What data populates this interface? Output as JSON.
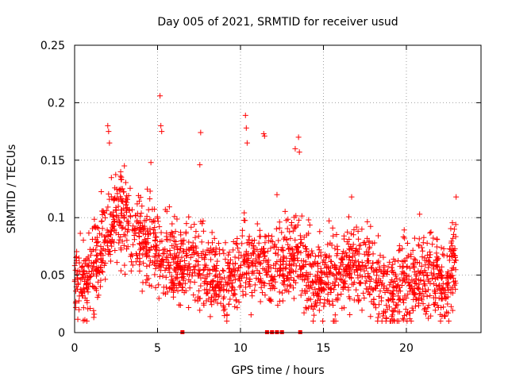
{
  "chart_data": {
    "type": "scatter",
    "title": "Day 005 of 2021, SRMTID for receiver usud",
    "xlabel": "GPS time / hours",
    "ylabel": "SRMTID / TECUs",
    "xlim": [
      0,
      24.5
    ],
    "ylim": [
      0,
      0.25
    ],
    "xticks": [
      0,
      5,
      10,
      15,
      20
    ],
    "yticks": [
      0,
      0.05,
      0.1,
      0.15,
      0.2,
      0.25
    ],
    "grid": true,
    "marker": "plus",
    "color": "#ff0000",
    "trend": {
      "x": [
        0,
        0.5,
        1,
        1.5,
        2,
        2.5,
        3,
        3.5,
        4,
        4.5,
        5,
        5.5,
        6,
        6.5,
        7,
        7.5,
        8,
        8.5,
        9,
        9.5,
        10,
        10.5,
        11,
        11.5,
        12,
        12.5,
        13,
        13.5,
        14,
        14.5,
        15,
        15.5,
        16,
        16.5,
        17,
        17.5,
        18,
        18.5,
        19,
        19.5,
        20,
        20.5,
        21,
        21.5,
        22,
        22.5,
        23
      ],
      "y": [
        0.045,
        0.04,
        0.05,
        0.07,
        0.09,
        0.1,
        0.095,
        0.085,
        0.085,
        0.075,
        0.07,
        0.065,
        0.06,
        0.055,
        0.06,
        0.055,
        0.05,
        0.05,
        0.045,
        0.045,
        0.05,
        0.055,
        0.06,
        0.06,
        0.06,
        0.06,
        0.06,
        0.065,
        0.05,
        0.045,
        0.045,
        0.05,
        0.05,
        0.055,
        0.06,
        0.055,
        0.05,
        0.04,
        0.03,
        0.035,
        0.045,
        0.045,
        0.045,
        0.045,
        0.04,
        0.04,
        0.07
      ]
    },
    "spread": 0.017,
    "samples_per_hour": 90,
    "outliers": [
      {
        "x": 2.0,
        "y": 0.18
      },
      {
        "x": 2.05,
        "y": 0.175
      },
      {
        "x": 2.1,
        "y": 0.165
      },
      {
        "x": 5.15,
        "y": 0.206
      },
      {
        "x": 5.2,
        "y": 0.18
      },
      {
        "x": 5.25,
        "y": 0.175
      },
      {
        "x": 7.6,
        "y": 0.174
      },
      {
        "x": 7.55,
        "y": 0.146
      },
      {
        "x": 10.3,
        "y": 0.189
      },
      {
        "x": 10.35,
        "y": 0.178
      },
      {
        "x": 10.4,
        "y": 0.165
      },
      {
        "x": 11.4,
        "y": 0.173
      },
      {
        "x": 11.45,
        "y": 0.171
      },
      {
        "x": 13.5,
        "y": 0.17
      },
      {
        "x": 13.3,
        "y": 0.16
      },
      {
        "x": 13.55,
        "y": 0.157
      },
      {
        "x": 4.6,
        "y": 0.148
      },
      {
        "x": 3.0,
        "y": 0.145
      },
      {
        "x": 12.2,
        "y": 0.12
      },
      {
        "x": 16.7,
        "y": 0.118
      },
      {
        "x": 23.0,
        "y": 0.118
      },
      {
        "x": 20.8,
        "y": 0.103
      }
    ],
    "zero_points_x": [
      6.5,
      11.6,
      11.9,
      12.2,
      12.5,
      13.6
    ]
  }
}
